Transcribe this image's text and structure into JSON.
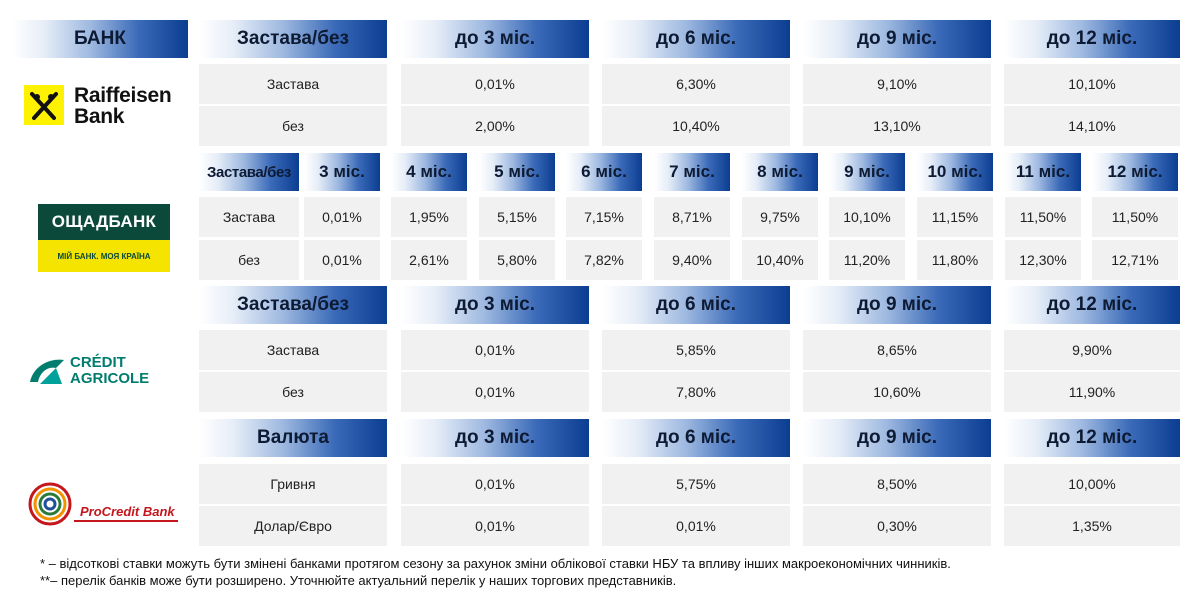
{
  "header": {
    "bank": "БАНК"
  },
  "raiffeisen": {
    "logo_line1": "Raiffeisen",
    "logo_line2": "Bank",
    "head": [
      "Застава/без",
      "до 3 міс.",
      "до 6 міс.",
      "до 9 міс.",
      "до 12 міс."
    ],
    "rows": [
      [
        "Застава",
        "0,01%",
        "6,30%",
        "9,10%",
        "10,10%"
      ],
      [
        "без",
        "2,00%",
        "10,40%",
        "13,10%",
        "14,10%"
      ]
    ]
  },
  "oschad": {
    "logo_title": "ОЩАДБАНК",
    "logo_slogan": "МІЙ БАНК. МОЯ КРАЇНА",
    "head": [
      "Застава/без",
      "3 міс.",
      "4 міс.",
      "5 міс.",
      "6 міс.",
      "7 міс.",
      "8 міс.",
      "9 міс.",
      "10 міс.",
      "11 міс.",
      "12 міс."
    ],
    "rows": [
      [
        "Застава",
        "0,01%",
        "1,95%",
        "5,15%",
        "7,15%",
        "8,71%",
        "9,75%",
        "10,10%",
        "11,15%",
        "11,50%",
        "11,50%"
      ],
      [
        "без",
        "0,01%",
        "2,61%",
        "5,80%",
        "7,82%",
        "9,40%",
        "10,40%",
        "11,20%",
        "11,80%",
        "12,30%",
        "12,71%"
      ]
    ]
  },
  "credit_agricole": {
    "logo_line1": "CRÉDIT",
    "logo_line2": "AGRICOLE",
    "head": [
      "Застава/без",
      "до 3 міс.",
      "до 6 міс.",
      "до 9 міс.",
      "до 12 міс."
    ],
    "rows": [
      [
        "Застава",
        "0,01%",
        "5,85%",
        "8,65%",
        "9,90%"
      ],
      [
        "без",
        "0,01%",
        "7,80%",
        "10,60%",
        "11,90%"
      ]
    ]
  },
  "procredit": {
    "logo_text": "ProCredit Bank",
    "head": [
      "Валюта",
      "до 3 міс.",
      "до 6 міс.",
      "до 9 міс.",
      "до 12 міс."
    ],
    "rows": [
      [
        "Гривня",
        "0,01%",
        "5,75%",
        "8,50%",
        "10,00%"
      ],
      [
        "Долар/Євро",
        "0,01%",
        "0,01%",
        "0,30%",
        "1,35%"
      ]
    ]
  },
  "notes": [
    "* – відсоткові ставки можуть бути змінені банками протягом сезону за рахунок зміни облікової ставки НБУ та впливу інших макроекономічних чинників.",
    "**– перелік банків може бути розширено. Уточнюйте актуальний перелік у наших торгових представників."
  ],
  "colors": {
    "header_dark": "#0b3d91",
    "cell_bg": "#f1f1f2",
    "raiffeisen_yellow": "#fff200",
    "oschad_green": "#0b4a3a",
    "agricole_teal": "#007d6e",
    "procredit_red": "#c4161c"
  }
}
